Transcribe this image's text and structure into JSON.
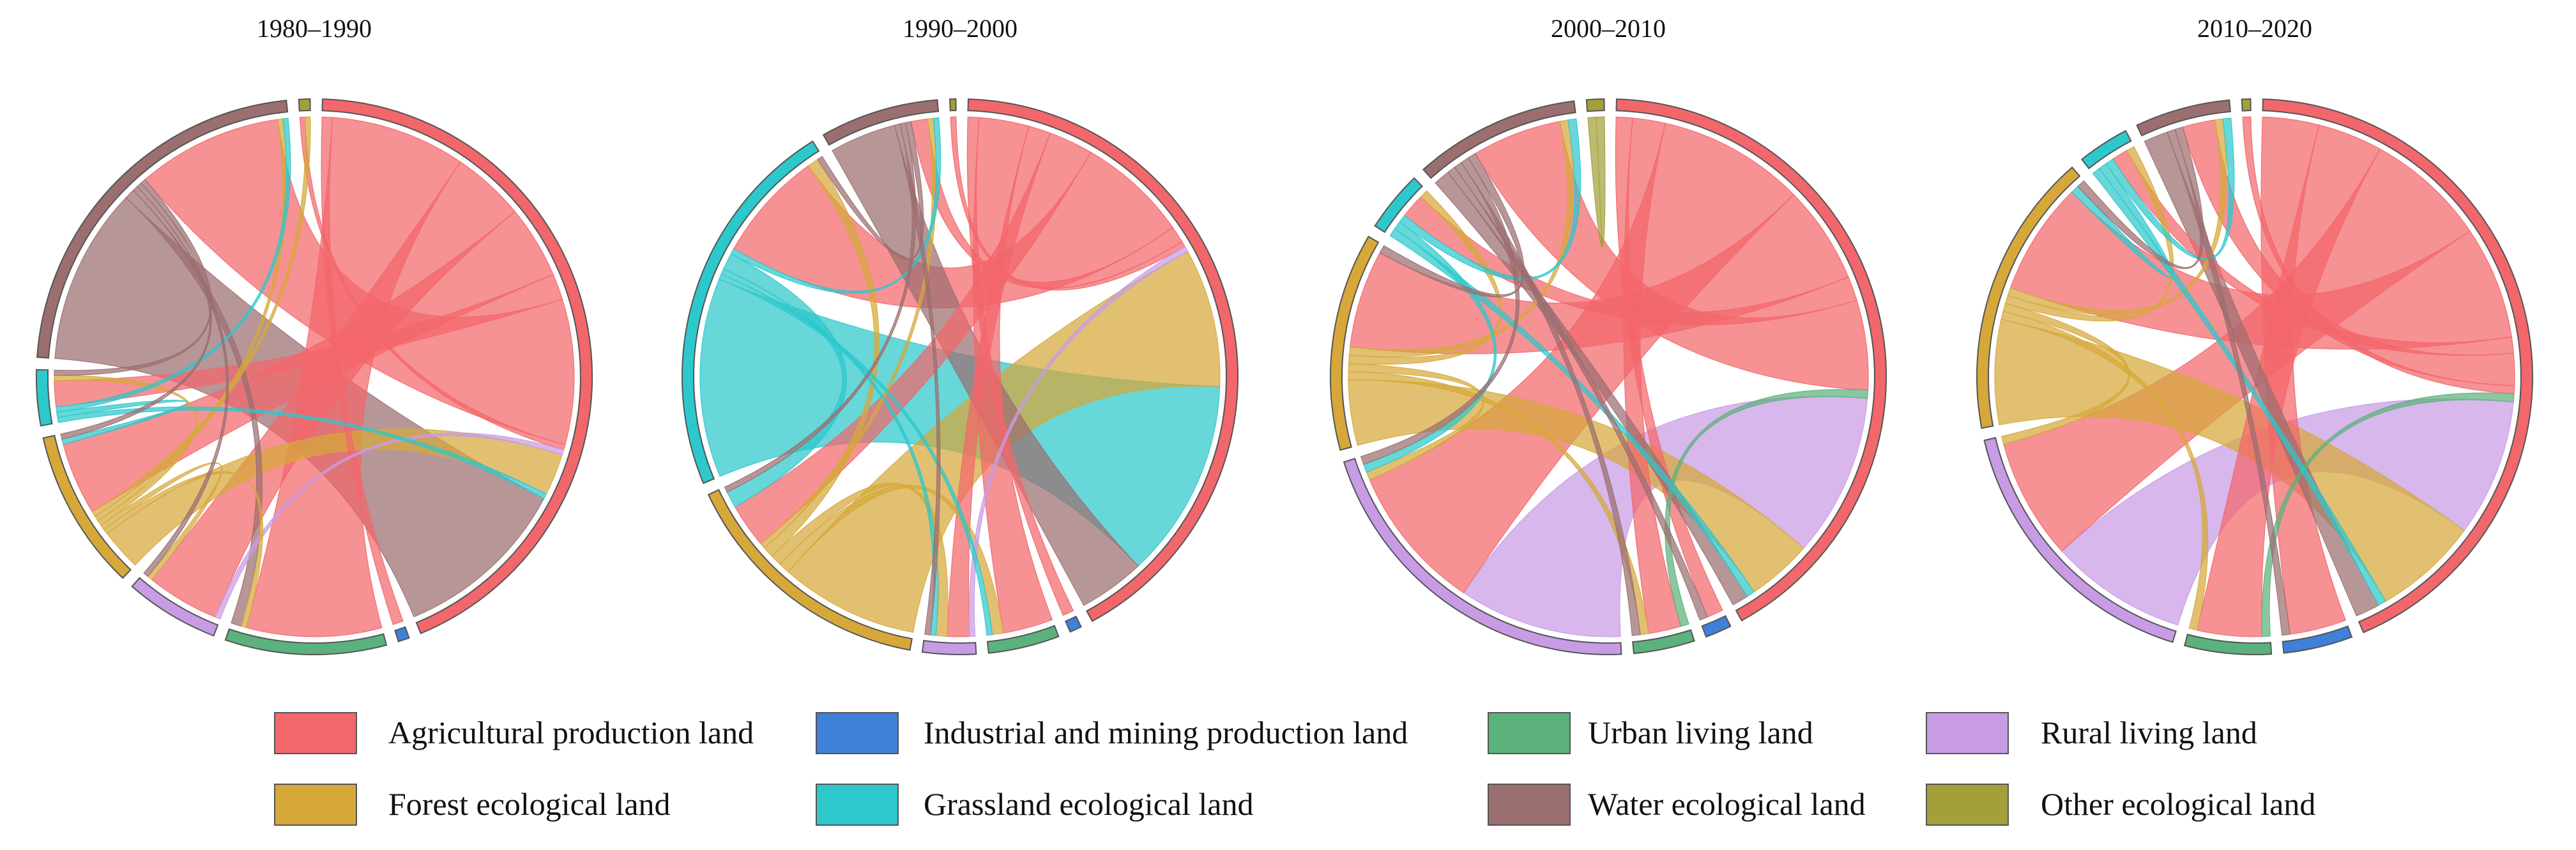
{
  "chart_data": {
    "type": "chord",
    "categories": [
      "Agricultural production land",
      "Industrial and mining production land",
      "Urban living land",
      "Rural living land",
      "Forest ecological land",
      "Grassland ecological land",
      "Water ecological land",
      "Other ecological land"
    ],
    "colors": [
      "#f2676b",
      "#3f80d8",
      "#5bb27d",
      "#c89be5",
      "#d6a83a",
      "#2cc8cc",
      "#9b6e70",
      "#a3a03a"
    ],
    "order": [
      0,
      1,
      2,
      3,
      4,
      5,
      6,
      7
    ],
    "panels": [
      {
        "title": "1980–1990",
        "matrix": [
          [
            0,
            2,
            26,
            14,
            14,
            5,
            28,
            1
          ],
          [
            0,
            0,
            0,
            0,
            0,
            0,
            0,
            0
          ],
          [
            0,
            0,
            0,
            0,
            0,
            0,
            0,
            0
          ],
          [
            1,
            0,
            0,
            0,
            0,
            0,
            0,
            0
          ],
          [
            8,
            0,
            1,
            1,
            0,
            1,
            1,
            1
          ],
          [
            1,
            0,
            0,
            0,
            1,
            0,
            1,
            0
          ],
          [
            34,
            0,
            2,
            1,
            1,
            1,
            0,
            0
          ],
          [
            0,
            0,
            0,
            0,
            0,
            0,
            0,
            0
          ]
        ]
      },
      {
        "title": "1990–2000",
        "matrix": [
          [
            0,
            2,
            9,
            4,
            8,
            20,
            3,
            1
          ],
          [
            0,
            0,
            0,
            0,
            0,
            0,
            0,
            0
          ],
          [
            0,
            0,
            0,
            0,
            0,
            0,
            0,
            0
          ],
          [
            1,
            0,
            0,
            0,
            0,
            0,
            0,
            0
          ],
          [
            25,
            0,
            2,
            2,
            0,
            2,
            1,
            0
          ],
          [
            36,
            0,
            1,
            1,
            3,
            0,
            1,
            0
          ],
          [
            12,
            0,
            0,
            1,
            1,
            1,
            0,
            0
          ],
          [
            0,
            0,
            0,
            0,
            0,
            0,
            0,
            0
          ]
        ]
      },
      {
        "title": "2000–2010",
        "matrix": [
          [
            0,
            2,
            4,
            18,
            12,
            3,
            11,
            0
          ],
          [
            0,
            0,
            0,
            0,
            0,
            0,
            0,
            0
          ],
          [
            1,
            0,
            0,
            0,
            0,
            0,
            0,
            0
          ],
          [
            20,
            0,
            0,
            0,
            0,
            0,
            0,
            0
          ],
          [
            8,
            0,
            1,
            1,
            0,
            1,
            1,
            0
          ],
          [
            1,
            0,
            0,
            1,
            0,
            0,
            1,
            0
          ],
          [
            2,
            1,
            1,
            1,
            1,
            0,
            0,
            0
          ],
          [
            0,
            0,
            0,
            0,
            0,
            0,
            0,
            1
          ]
        ]
      },
      {
        "title": "2010–2020",
        "matrix": [
          [
            0,
            7,
            8,
            15,
            14,
            2,
            4,
            1
          ],
          [
            0,
            0,
            0,
            0,
            0,
            0,
            0,
            0
          ],
          [
            1,
            0,
            0,
            0,
            0,
            0,
            0,
            0
          ],
          [
            17,
            0,
            0,
            0,
            0,
            0,
            0,
            0
          ],
          [
            13,
            0,
            1,
            1,
            0,
            1,
            1,
            0
          ],
          [
            1,
            0,
            0,
            0,
            1,
            0,
            1,
            0
          ],
          [
            3,
            1,
            0,
            0,
            1,
            0,
            0,
            0
          ],
          [
            0,
            0,
            0,
            0,
            0,
            0,
            0,
            0
          ]
        ]
      }
    ]
  }
}
